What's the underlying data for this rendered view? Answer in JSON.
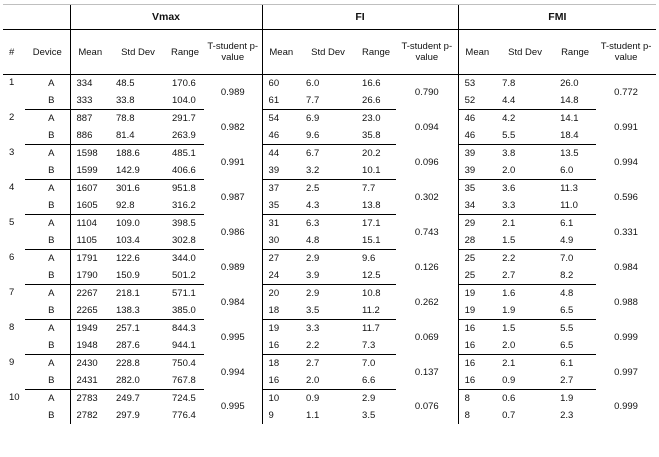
{
  "groups": [
    "Vmax",
    "FI",
    "FMI"
  ],
  "headers": {
    "index": "#",
    "device": "Device",
    "mean": "Mean",
    "std": "Std Dev",
    "range": "Range",
    "ttest_a": "T-student p-value",
    "ttest_c": "T-student p-value"
  },
  "rows": [
    {
      "n": "1",
      "p": [
        "0.989",
        "0.790",
        "0.772"
      ],
      "A": {
        "vmax": [
          "334",
          "48.5",
          "170.6"
        ],
        "fi": [
          "60",
          "6.0",
          "16.6"
        ],
        "fmi": [
          "53",
          "7.8",
          "26.0"
        ]
      },
      "B": {
        "vmax": [
          "333",
          "33.8",
          "104.0"
        ],
        "fi": [
          "61",
          "7.7",
          "26.6"
        ],
        "fmi": [
          "52",
          "4.4",
          "14.8"
        ]
      }
    },
    {
      "n": "2",
      "p": [
        "0.982",
        "0.094",
        "0.991"
      ],
      "A": {
        "vmax": [
          "887",
          "78.8",
          "291.7"
        ],
        "fi": [
          "54",
          "6.9",
          "23.0"
        ],
        "fmi": [
          "46",
          "4.2",
          "14.1"
        ]
      },
      "B": {
        "vmax": [
          "886",
          "81.4",
          "263.9"
        ],
        "fi": [
          "46",
          "9.6",
          "35.8"
        ],
        "fmi": [
          "46",
          "5.5",
          "18.4"
        ]
      }
    },
    {
      "n": "3",
      "p": [
        "0.991",
        "0.096",
        "0.994"
      ],
      "A": {
        "vmax": [
          "1598",
          "188.6",
          "485.1"
        ],
        "fi": [
          "44",
          "6.7",
          "20.2"
        ],
        "fmi": [
          "39",
          "3.8",
          "13.5"
        ]
      },
      "B": {
        "vmax": [
          "1599",
          "142.9",
          "406.6"
        ],
        "fi": [
          "39",
          "3.2",
          "10.1"
        ],
        "fmi": [
          "39",
          "2.0",
          "6.0"
        ]
      }
    },
    {
      "n": "4",
      "p": [
        "0.987",
        "0.302",
        "0.596"
      ],
      "A": {
        "vmax": [
          "1607",
          "301.6",
          "951.8"
        ],
        "fi": [
          "37",
          "2.5",
          "7.7"
        ],
        "fmi": [
          "35",
          "3.6",
          "11.3"
        ]
      },
      "B": {
        "vmax": [
          "1605",
          "92.8",
          "316.2"
        ],
        "fi": [
          "35",
          "4.3",
          "13.8"
        ],
        "fmi": [
          "34",
          "3.3",
          "11.0"
        ]
      }
    },
    {
      "n": "5",
      "p": [
        "0.986",
        "0.743",
        "0.331"
      ],
      "A": {
        "vmax": [
          "1104",
          "109.0",
          "398.5"
        ],
        "fi": [
          "31",
          "6.3",
          "17.1"
        ],
        "fmi": [
          "29",
          "2.1",
          "6.1"
        ]
      },
      "B": {
        "vmax": [
          "1105",
          "103.4",
          "302.8"
        ],
        "fi": [
          "30",
          "4.8",
          "15.1"
        ],
        "fmi": [
          "28",
          "1.5",
          "4.9"
        ]
      }
    },
    {
      "n": "6",
      "p": [
        "0.989",
        "0.126",
        "0.984"
      ],
      "A": {
        "vmax": [
          "1791",
          "122.6",
          "344.0"
        ],
        "fi": [
          "27",
          "2.9",
          "9.6"
        ],
        "fmi": [
          "25",
          "2.2",
          "7.0"
        ]
      },
      "B": {
        "vmax": [
          "1790",
          "150.9",
          "501.2"
        ],
        "fi": [
          "24",
          "3.9",
          "12.5"
        ],
        "fmi": [
          "25",
          "2.7",
          "8.2"
        ]
      }
    },
    {
      "n": "7",
      "p": [
        "0.984",
        "0.262",
        "0.988"
      ],
      "A": {
        "vmax": [
          "2267",
          "218.1",
          "571.1"
        ],
        "fi": [
          "20",
          "2.9",
          "10.8"
        ],
        "fmi": [
          "19",
          "1.6",
          "4.8"
        ]
      },
      "B": {
        "vmax": [
          "2265",
          "138.3",
          "385.0"
        ],
        "fi": [
          "18",
          "3.5",
          "11.2"
        ],
        "fmi": [
          "19",
          "1.9",
          "6.5"
        ]
      }
    },
    {
      "n": "8",
      "p": [
        "0.995",
        "0.069",
        "0.999"
      ],
      "A": {
        "vmax": [
          "1949",
          "257.1",
          "844.3"
        ],
        "fi": [
          "19",
          "3.3",
          "11.7"
        ],
        "fmi": [
          "16",
          "1.5",
          "5.5"
        ]
      },
      "B": {
        "vmax": [
          "1948",
          "287.6",
          "944.1"
        ],
        "fi": [
          "16",
          "2.2",
          "7.3"
        ],
        "fmi": [
          "16",
          "2.0",
          "6.5"
        ]
      }
    },
    {
      "n": "9",
      "p": [
        "0.994",
        "0.137",
        "0.997"
      ],
      "A": {
        "vmax": [
          "2430",
          "228.8",
          "750.4"
        ],
        "fi": [
          "18",
          "2.7",
          "7.0"
        ],
        "fmi": [
          "16",
          "2.1",
          "6.1"
        ]
      },
      "B": {
        "vmax": [
          "2431",
          "282.0",
          "767.8"
        ],
        "fi": [
          "16",
          "2.0",
          "6.6"
        ],
        "fmi": [
          "16",
          "0.9",
          "2.7"
        ]
      }
    },
    {
      "n": "10",
      "p": [
        "0.995",
        "0.076",
        "0.999"
      ],
      "A": {
        "vmax": [
          "2783",
          "249.7",
          "724.5"
        ],
        "fi": [
          "10",
          "0.9",
          "2.9"
        ],
        "fmi": [
          "8",
          "0.6",
          "1.9"
        ]
      },
      "B": {
        "vmax": [
          "2782",
          "297.9",
          "776.4"
        ],
        "fi": [
          "9",
          "1.1",
          "3.5"
        ],
        "fmi": [
          "8",
          "0.7",
          "2.3"
        ]
      }
    }
  ]
}
